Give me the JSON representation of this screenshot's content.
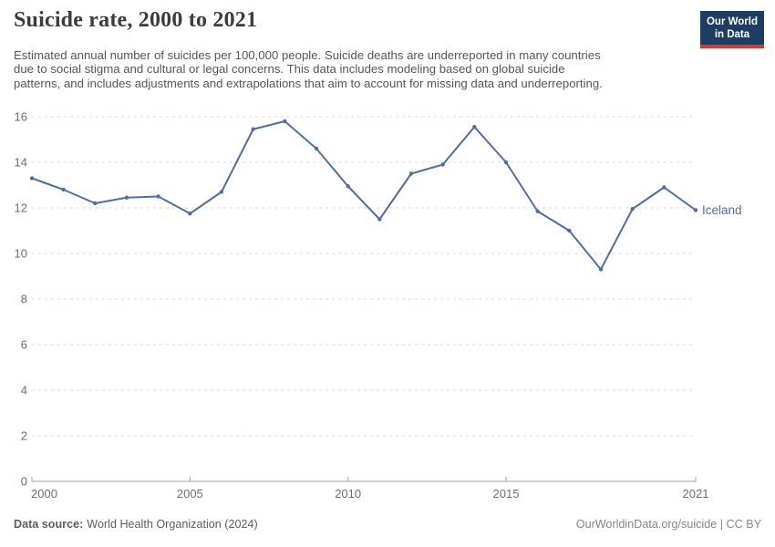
{
  "header": {
    "title": "Suicide rate, 2000 to 2021",
    "subtitle_lines": [
      "Estimated annual number of suicides per 100,000 people. Suicide deaths are underreported in many countries",
      "due to social stigma and cultural or legal concerns. This data includes modeling based on global suicide",
      "patterns, and includes adjustments and extrapolations that aim to account for missing data and underreporting."
    ],
    "logo": {
      "line1": "Our World",
      "line2": "in Data"
    }
  },
  "footer": {
    "source_label": "Data source:",
    "source_value": "World Health Organization (2024)",
    "credit": "OurWorldinData.org/suicide | CC BY"
  },
  "colors": {
    "line": "#4e6fa6",
    "grid": "#d9d9d9",
    "axis": "#a3a3a3",
    "tick_text": "#6e6e6e",
    "logo_navy": "#1d3d63",
    "logo_red": "#d13b32",
    "title_text": "#3c3c3c",
    "subtitle_text": "#565656"
  },
  "chart_data": {
    "type": "line",
    "title": "Suicide rate, 2000 to 2021",
    "xlabel": "",
    "ylabel": "",
    "xlim": [
      2000,
      2021
    ],
    "ylim": [
      0,
      16
    ],
    "x_ticks": [
      2000,
      2005,
      2010,
      2015,
      2021
    ],
    "y_ticks": [
      0,
      2,
      4,
      6,
      8,
      10,
      12,
      14,
      16
    ],
    "grid": "horizontal-dashed",
    "legend_position": "end-of-line-label",
    "entity_label": "Iceland",
    "series": [
      {
        "name": "Iceland",
        "color": "#4e6fa6",
        "x": [
          2000,
          2001,
          2002,
          2003,
          2004,
          2005,
          2006,
          2007,
          2008,
          2009,
          2010,
          2011,
          2012,
          2013,
          2014,
          2015,
          2016,
          2017,
          2018,
          2019,
          2020,
          2021
        ],
        "values": [
          13.3,
          12.8,
          12.2,
          12.45,
          12.5,
          11.75,
          12.7,
          15.45,
          15.8,
          14.6,
          12.95,
          11.5,
          13.5,
          13.9,
          15.55,
          14.0,
          11.85,
          11.0,
          9.3,
          11.95,
          12.9,
          11.9
        ]
      }
    ]
  }
}
